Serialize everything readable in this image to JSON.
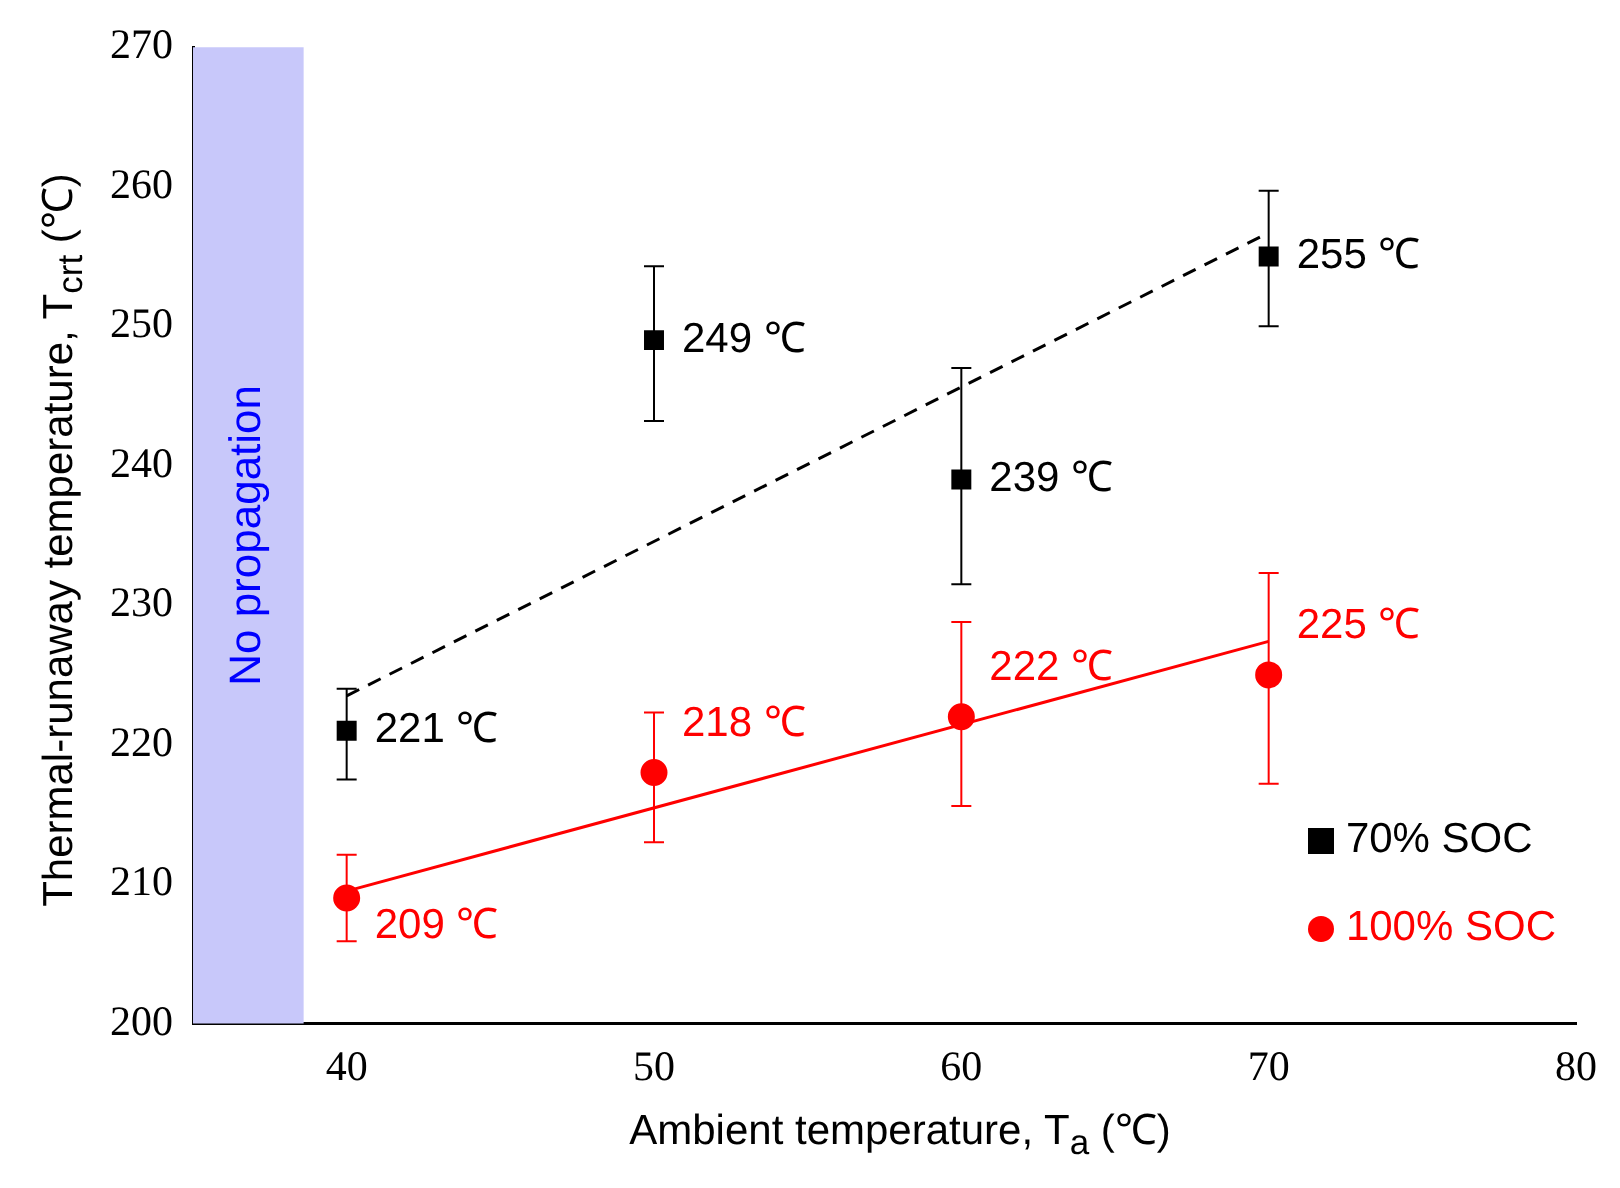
{
  "chart_data": {
    "type": "scatter",
    "xlabel": "Ambient temperature, T$_{a}$ (℃)",
    "ylabel": "Thermal-runaway temperature, T$_{crt}$ (℃)",
    "xlim": [
      35,
      80
    ],
    "xticks": [
      40,
      50,
      60,
      70,
      80
    ],
    "ylim": [
      200,
      270
    ],
    "yticks": [
      200,
      210,
      220,
      230,
      240,
      250,
      260,
      270
    ],
    "grid": false,
    "legend": "bottom right",
    "bands": [
      {
        "axis": "x",
        "from": 35,
        "to": 38.6,
        "label": "No propagation",
        "color": "#c8c8fa"
      }
    ],
    "series": [
      {
        "name": "70% SOC",
        "color": "#000000",
        "marker": "square",
        "x": [
          40,
          50,
          60,
          70
        ],
        "values": [
          221,
          249,
          239,
          255
        ],
        "errors": [
          [
            217.5,
            224
          ],
          [
            243.2,
            254.3
          ],
          [
            231.5,
            247
          ],
          [
            250,
            259.7
          ]
        ],
        "value_labels": [
          "221 ℃",
          "249 ℃",
          "239 ℃",
          "255 ℃"
        ]
      },
      {
        "name": "100% SOC",
        "color": "#ff0000",
        "marker": "circle",
        "x": [
          40,
          50,
          60,
          70
        ],
        "values": [
          209,
          218,
          222,
          225
        ],
        "errors": [
          [
            205.9,
            212.1
          ],
          [
            213,
            222.3
          ],
          [
            215.6,
            228.8
          ],
          [
            217.2,
            232.3
          ]
        ],
        "value_labels": [
          "209 ℃",
          "218 ℃",
          "222 ℃",
          "225 ℃"
        ]
      },
      {
        "type": "line",
        "color": "#000000",
        "line_style": "dashed",
        "x": [
          40,
          70
        ],
        "values": [
          223.5,
          256.7
        ]
      },
      {
        "type": "line",
        "color": "#ff0000",
        "line_style": "solid",
        "x": [
          40,
          70
        ],
        "values": [
          209.5,
          227.4
        ]
      }
    ]
  }
}
